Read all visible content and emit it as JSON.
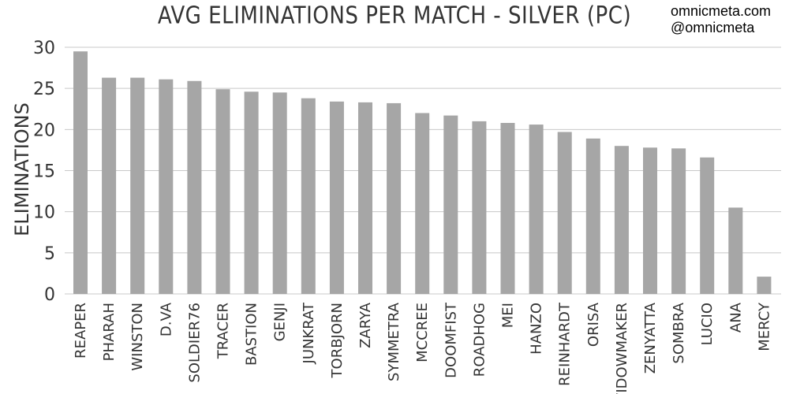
{
  "brand": {
    "site": "omnicmeta.com",
    "handle": "@omnicmeta"
  },
  "chart_data": {
    "type": "bar",
    "title": "AVG ELIMINATIONS PER MATCH - SILVER (PC)",
    "xlabel": "",
    "ylabel": "ELIMINATIONS",
    "ylim": [
      0,
      30
    ],
    "yticks": [
      0,
      5,
      10,
      15,
      20,
      25,
      30
    ],
    "grid": true,
    "bar_color": "#a6a6a6",
    "categories": [
      "REAPER",
      "PHARAH",
      "WINSTON",
      "D.VA",
      "SOLDIER76",
      "TRACER",
      "BASTION",
      "GENJI",
      "JUNKRAT",
      "TORBJORN",
      "ZARYA",
      "SYMMETRA",
      "MCCREE",
      "DOOMFIST",
      "ROADHOG",
      "MEI",
      "HANZO",
      "REINHARDT",
      "ORISA",
      "WIDOWMAKER",
      "ZENYATTA",
      "SOMBRA",
      "LUCIO",
      "ANA",
      "MERCY"
    ],
    "values": [
      29.5,
      26.3,
      26.3,
      26.1,
      25.9,
      24.9,
      24.6,
      24.5,
      23.8,
      23.4,
      23.3,
      23.2,
      22.0,
      21.7,
      21.0,
      20.8,
      20.6,
      19.7,
      18.9,
      18.0,
      17.8,
      17.7,
      16.6,
      10.5,
      2.1
    ]
  }
}
